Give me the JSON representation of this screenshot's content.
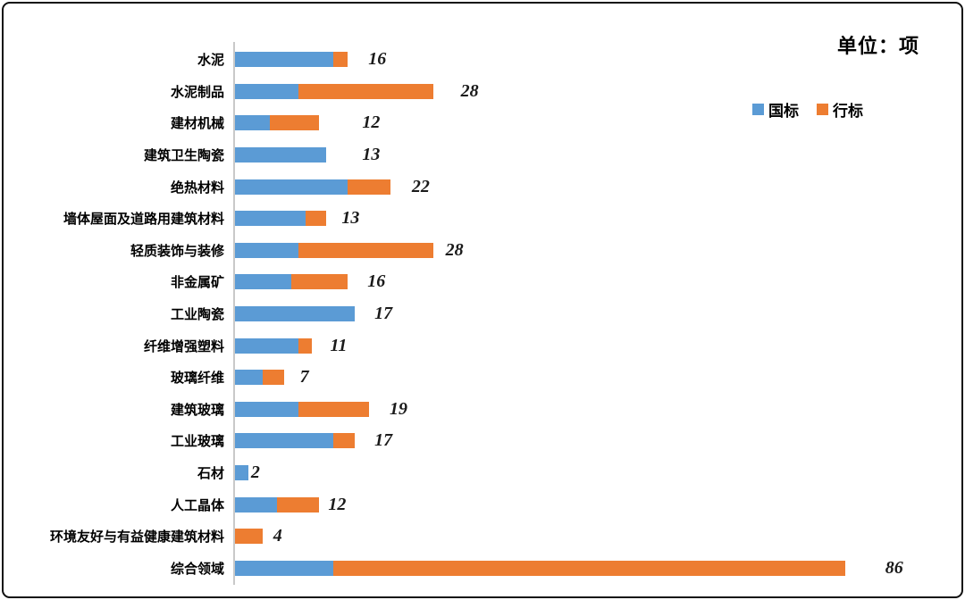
{
  "unit_title": "单位：项",
  "legend": [
    {
      "label": "国标",
      "color": "#5B9BD5"
    },
    {
      "label": "行标",
      "color": "#ED7D31"
    }
  ],
  "chart_data": {
    "type": "bar",
    "orientation": "horizontal",
    "stacked": true,
    "title": "单位：项",
    "legend_position": "top-right",
    "grid": false,
    "value_axis_visible": false,
    "categories": [
      "水泥",
      "水泥制品",
      "建材机械",
      "建筑卫生陶瓷",
      "绝热材料",
      "墙体屋面及道路用建筑材料",
      "轻质装饰与装修",
      "非金属矿",
      "工业陶瓷",
      "纤维增强塑料",
      "玻璃纤维",
      "建筑玻璃",
      "工业玻璃",
      "石材",
      "人工晶体",
      "环境友好与有益健康建筑材料",
      "综合领域"
    ],
    "series": [
      {
        "name": "国标",
        "color": "#5B9BD5",
        "values": [
          14,
          9,
          5,
          13,
          16,
          10,
          9,
          8,
          17,
          9,
          4,
          9,
          14,
          2,
          6,
          0,
          14
        ]
      },
      {
        "name": "行标",
        "color": "#ED7D31",
        "values": [
          2,
          19,
          7,
          0,
          6,
          3,
          19,
          8,
          0,
          2,
          3,
          10,
          3,
          0,
          6,
          4,
          72
        ]
      }
    ],
    "totals": [
      16,
      28,
      12,
      13,
      22,
      13,
      28,
      16,
      17,
      11,
      7,
      19,
      17,
      2,
      12,
      4,
      86
    ]
  }
}
